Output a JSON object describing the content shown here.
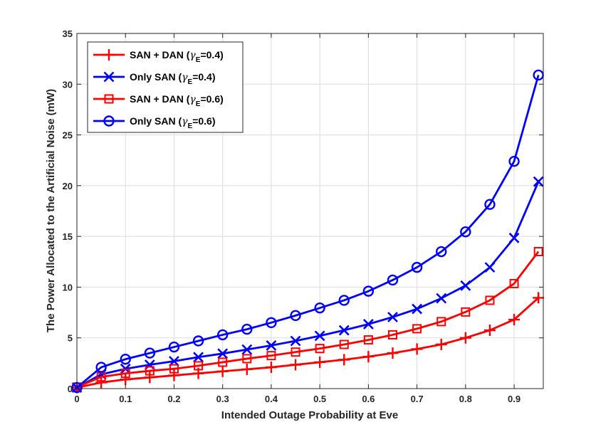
{
  "chart_data": {
    "type": "line",
    "title": "",
    "xlabel": "Intended Outage Probability at Eve",
    "ylabel": "The Power Allocated to the Artificial Noise (mW)",
    "xlim": [
      0,
      0.96
    ],
    "ylim": [
      0,
      35
    ],
    "xticks": [
      0,
      0.1,
      0.2,
      0.3,
      0.4,
      0.5,
      0.6,
      0.7,
      0.8,
      0.9
    ],
    "xtick_labels": [
      "0",
      "0.1",
      "0.2",
      "0.3",
      "0.4",
      "0.5",
      "0.6",
      "0.7",
      "0.8",
      "0.9"
    ],
    "yticks": [
      0,
      5,
      10,
      15,
      20,
      25,
      30,
      35
    ],
    "ytick_labels": [
      "0",
      "5",
      "10",
      "15",
      "20",
      "25",
      "30",
      "35"
    ],
    "grid": true,
    "legend_position": "top-left",
    "x": [
      0,
      0.05,
      0.1,
      0.15,
      0.2,
      0.25,
      0.3,
      0.35,
      0.4,
      0.45,
      0.5,
      0.55,
      0.6,
      0.65,
      0.7,
      0.75,
      0.8,
      0.85,
      0.9,
      0.95
    ],
    "series": [
      {
        "name": "SAN + DAN",
        "gamma_symbol": "γ",
        "gamma_subscript": "E",
        "gamma_value": "=0.4)",
        "color": "#ff0000",
        "marker": "plus",
        "values": [
          0.1,
          0.6,
          0.9,
          1.1,
          1.3,
          1.5,
          1.7,
          1.9,
          2.1,
          2.35,
          2.6,
          2.85,
          3.15,
          3.5,
          3.9,
          4.35,
          5.0,
          5.75,
          6.8,
          8.95
        ]
      },
      {
        "name": "Only SAN",
        "gamma_symbol": "γ",
        "gamma_subscript": "E",
        "gamma_value": "=0.4)",
        "color": "#0000ff",
        "marker": "x",
        "values": [
          0.1,
          1.4,
          1.95,
          2.35,
          2.7,
          3.1,
          3.45,
          3.85,
          4.25,
          4.7,
          5.2,
          5.75,
          6.35,
          7.05,
          7.85,
          8.9,
          10.15,
          11.95,
          14.85,
          20.4
        ]
      },
      {
        "name": "SAN + DAN",
        "gamma_symbol": "γ",
        "gamma_subscript": "E",
        "gamma_value": "=0.6)",
        "color": "#ff0000",
        "marker": "square",
        "values": [
          0.15,
          1.15,
          1.5,
          1.75,
          1.95,
          2.25,
          2.6,
          2.95,
          3.25,
          3.6,
          3.95,
          4.35,
          4.8,
          5.3,
          5.9,
          6.6,
          7.55,
          8.7,
          10.35,
          13.5
        ]
      },
      {
        "name": "Only SAN",
        "gamma_symbol": "γ",
        "gamma_subscript": "E",
        "gamma_value": "=0.6)",
        "color": "#0000ff",
        "marker": "circle",
        "values": [
          0.1,
          2.1,
          2.9,
          3.5,
          4.1,
          4.7,
          5.3,
          5.85,
          6.5,
          7.2,
          7.95,
          8.7,
          9.6,
          10.7,
          11.95,
          13.5,
          15.45,
          18.15,
          22.4,
          30.9
        ]
      }
    ]
  }
}
